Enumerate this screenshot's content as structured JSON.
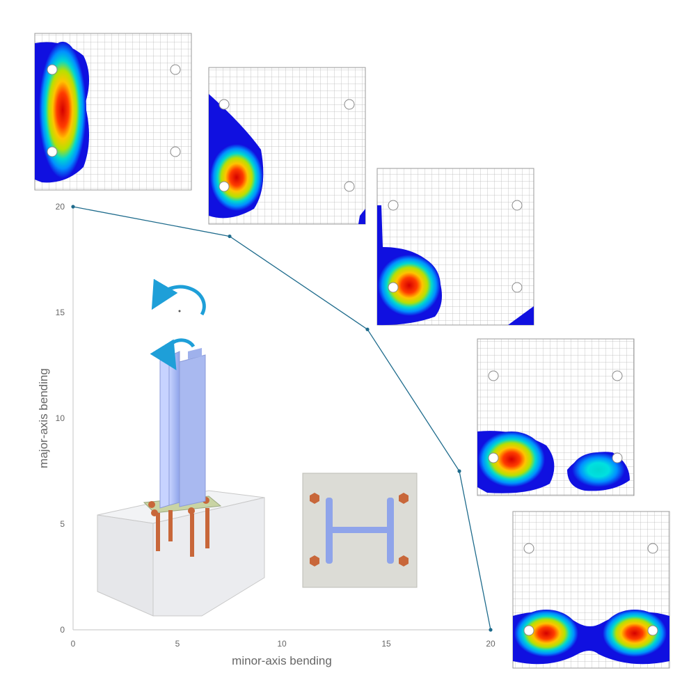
{
  "chart_data": {
    "type": "line",
    "title": "",
    "xlabel": "minor-axis bending",
    "ylabel": "major-axis bending",
    "xlim": [
      0,
      20
    ],
    "ylim": [
      0,
      20
    ],
    "xticks": [
      "0",
      "5",
      "10",
      "15",
      "20"
    ],
    "yticks": [
      "0",
      "5",
      "10",
      "15",
      "20"
    ],
    "grid": false,
    "series": [
      {
        "x": [
          0,
          7.5,
          14.1,
          18.5,
          20
        ],
        "y": [
          20,
          18.6,
          14.2,
          7.5,
          0
        ]
      }
    ]
  },
  "colors": {
    "line": "#1e6b8c",
    "axis": "#cfcfcf",
    "arrow": "#1e9fd8",
    "column": "#a8b8f0",
    "baseplate": "#c9d4a4",
    "bolt": "#c8673a",
    "fe_red": "#d40000",
    "fe_blue": "#1010e0"
  }
}
